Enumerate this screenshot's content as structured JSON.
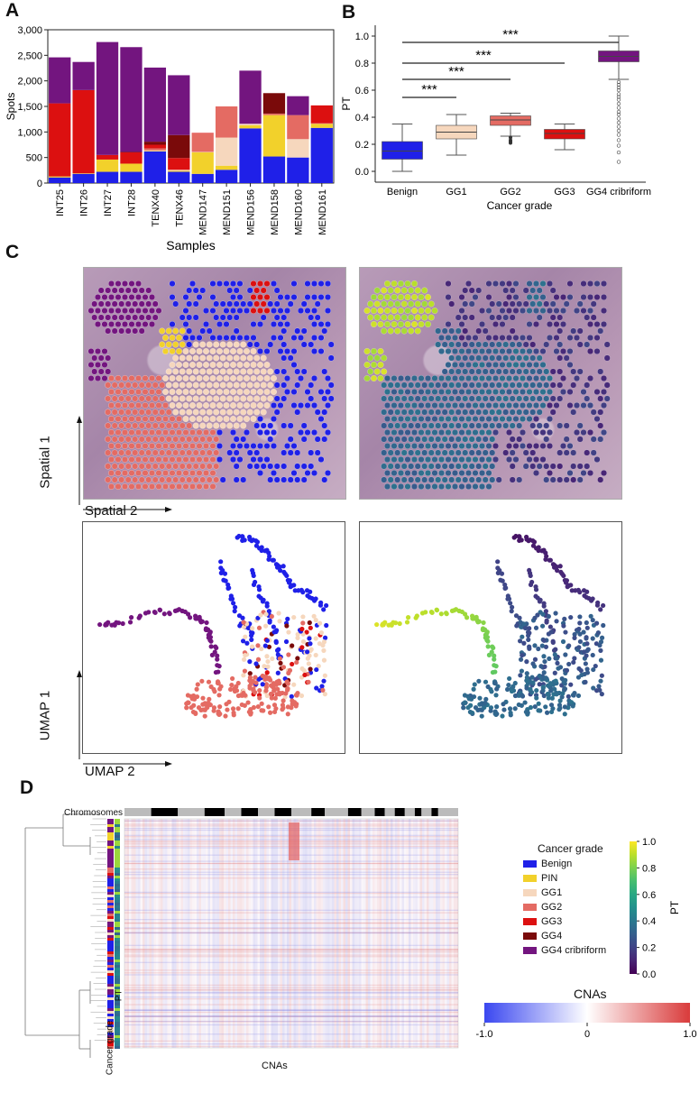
{
  "panels": {
    "a": "A",
    "b": "B",
    "c": "C",
    "d": "D"
  },
  "colors": {
    "benign": "#1f20e8",
    "pin": "#f2d12b",
    "gg1": "#f6d7bd",
    "gg2": "#e46b63",
    "gg3": "#dc1010",
    "gg4": "#7a0a0a",
    "gg4crib": "#73157f"
  },
  "chart_data": [
    {
      "type": "bar",
      "stacked": true,
      "categories": [
        "INT25",
        "INT26",
        "INT27",
        "INT28",
        "TENX40",
        "TENX46",
        "MEND147",
        "MEND151",
        "MEND156",
        "MEND158",
        "MEND160",
        "MEND161"
      ],
      "xlabel": "Samples",
      "ylabel": "Spots",
      "ylim": [
        0,
        3000
      ],
      "yticks": [
        "0",
        "500",
        "1,000",
        "1,500",
        "2,000",
        "2,500",
        "3,000"
      ],
      "series": [
        {
          "key": "benign",
          "values": [
            110,
            180,
            220,
            220,
            620,
            220,
            180,
            260,
            1070,
            520,
            500,
            1080
          ]
        },
        {
          "key": "pin",
          "values": [
            20,
            10,
            240,
            160,
            10,
            20,
            420,
            80,
            60,
            810,
            0,
            80
          ]
        },
        {
          "key": "gg1",
          "values": [
            0,
            0,
            0,
            0,
            10,
            20,
            10,
            550,
            30,
            0,
            360,
            0
          ]
        },
        {
          "key": "gg2",
          "values": [
            0,
            0,
            0,
            0,
            40,
            0,
            360,
            610,
            0,
            30,
            470,
            10
          ]
        },
        {
          "key": "gg3",
          "values": [
            1430,
            1630,
            90,
            220,
            70,
            230,
            10,
            0,
            0,
            0,
            0,
            350
          ]
        },
        {
          "key": "gg4",
          "values": [
            0,
            0,
            0,
            10,
            60,
            450,
            0,
            0,
            0,
            400,
            0,
            0
          ]
        },
        {
          "key": "gg4crib",
          "values": [
            900,
            550,
            2210,
            2050,
            1450,
            1170,
            0,
            0,
            1040,
            0,
            370,
            0
          ]
        }
      ]
    },
    {
      "type": "box",
      "categories": [
        "Benign",
        "GG1",
        "GG2",
        "GG3",
        "GG4 cribriform"
      ],
      "xlabel": "Cancer grade",
      "ylabel": "PT",
      "ylim": [
        -0.08,
        1.08
      ],
      "yticks": [
        "0.0",
        "0.2",
        "0.4",
        "0.6",
        "0.8",
        "1.0"
      ],
      "boxes": [
        {
          "key": "benign",
          "min": 0.0,
          "q1": 0.09,
          "median": 0.15,
          "q3": 0.22,
          "max": 0.35
        },
        {
          "key": "gg1",
          "min": 0.12,
          "q1": 0.24,
          "median": 0.29,
          "q3": 0.34,
          "max": 0.42
        },
        {
          "key": "gg2",
          "min": 0.26,
          "q1": 0.34,
          "median": 0.38,
          "q3": 0.41,
          "max": 0.43
        },
        {
          "key": "gg3",
          "min": 0.16,
          "q1": 0.24,
          "median": 0.28,
          "q3": 0.31,
          "max": 0.35
        },
        {
          "key": "gg4crib",
          "min": 0.68,
          "q1": 0.81,
          "median": 0.85,
          "q3": 0.89,
          "max": 1.0
        }
      ],
      "significance": [
        {
          "from": 0,
          "to": 1,
          "label": "***"
        },
        {
          "from": 0,
          "to": 2,
          "label": "***"
        },
        {
          "from": 0,
          "to": 3,
          "label": "***"
        },
        {
          "from": 0,
          "to": 4,
          "label": "***"
        }
      ]
    },
    {
      "type": "scatter",
      "panel": "C",
      "labels": {
        "spatial1": "Spatial 1",
        "spatial2": "Spatial 2",
        "umap1": "UMAP 1",
        "umap2": "UMAP 2"
      }
    },
    {
      "type": "heatmap",
      "panel": "D",
      "chromosomes_label": "Chromosomes",
      "xlabel": "CNAs",
      "row_annotations": [
        "Cancer grade",
        "PT"
      ],
      "legend": {
        "title": "Cancer grade",
        "items": [
          {
            "key": "benign",
            "label": "Benign"
          },
          {
            "key": "pin",
            "label": "PIN"
          },
          {
            "key": "gg1",
            "label": "GG1"
          },
          {
            "key": "gg2",
            "label": "GG2"
          },
          {
            "key": "gg3",
            "label": "GG3"
          },
          {
            "key": "gg4",
            "label": "GG4"
          },
          {
            "key": "gg4crib",
            "label": "GG4 cribriform"
          }
        ]
      },
      "pt_colorbar": {
        "label": "PT",
        "ticks": [
          "0.0",
          "0.2",
          "0.4",
          "0.6",
          "0.8",
          "1.0"
        ]
      },
      "cna_colorbar": {
        "label": "CNAs",
        "ticks": [
          "-1.0",
          "0",
          "1.0"
        ],
        "range": [
          -1.0,
          1.0
        ]
      }
    }
  ]
}
